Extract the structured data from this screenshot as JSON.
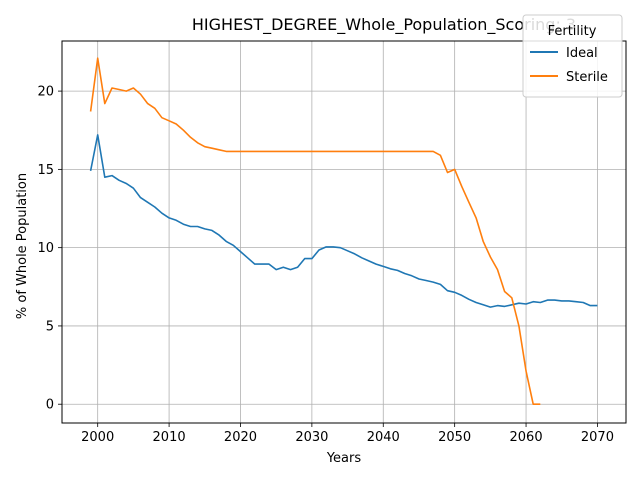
{
  "chart_data": {
    "type": "line",
    "title": "HIGHEST_DEGREE_Whole_Population_Scoring: 3",
    "xlabel": "Years",
    "ylabel": "% of Whole Population",
    "xlim": [
      1995,
      2074
    ],
    "ylim": [
      -1.2,
      23.2
    ],
    "xticks": [
      2000,
      2010,
      2020,
      2030,
      2040,
      2050,
      2060,
      2070
    ],
    "yticks": [
      0,
      5,
      10,
      15,
      20
    ],
    "grid": true,
    "legend": {
      "title": "Fertility",
      "placement": "top-right"
    },
    "series": [
      {
        "name": "Ideal",
        "color": "#1f77b4",
        "x": [
          1999,
          2000,
          2001,
          2002,
          2003,
          2004,
          2005,
          2006,
          2007,
          2008,
          2009,
          2010,
          2011,
          2012,
          2013,
          2014,
          2015,
          2016,
          2017,
          2018,
          2019,
          2020,
          2021,
          2022,
          2023,
          2024,
          2025,
          2026,
          2027,
          2028,
          2029,
          2030,
          2031,
          2032,
          2033,
          2034,
          2035,
          2036,
          2037,
          2038,
          2039,
          2040,
          2041,
          2042,
          2043,
          2044,
          2045,
          2046,
          2047,
          2048,
          2049,
          2050,
          2051,
          2052,
          2053,
          2054,
          2055,
          2056,
          2057,
          2058,
          2059,
          2060,
          2061,
          2062,
          2063,
          2064,
          2065,
          2066,
          2067,
          2068,
          2069,
          2070
        ],
        "values": [
          14.9,
          17.2,
          14.5,
          14.6,
          14.3,
          14.1,
          13.8,
          13.2,
          12.9,
          12.6,
          12.2,
          11.9,
          11.75,
          11.5,
          11.35,
          11.35,
          11.2,
          11.1,
          10.8,
          10.4,
          10.15,
          9.75,
          9.35,
          8.95,
          8.95,
          8.95,
          8.6,
          8.75,
          8.6,
          8.75,
          9.3,
          9.3,
          9.85,
          10.05,
          10.05,
          10.0,
          9.8,
          9.6,
          9.35,
          9.15,
          8.95,
          8.8,
          8.65,
          8.55,
          8.35,
          8.2,
          8.0,
          7.9,
          7.8,
          7.65,
          7.25,
          7.15,
          6.95,
          6.7,
          6.5,
          6.35,
          6.2,
          6.3,
          6.25,
          6.35,
          6.45,
          6.4,
          6.55,
          6.5,
          6.65,
          6.65,
          6.6,
          6.6,
          6.55,
          6.5,
          6.3,
          6.3
        ]
      },
      {
        "name": "Sterile",
        "color": "#ff7f0e",
        "x": [
          1999,
          2000,
          2001,
          2002,
          2003,
          2004,
          2005,
          2006,
          2007,
          2008,
          2009,
          2010,
          2011,
          2012,
          2013,
          2014,
          2015,
          2016,
          2017,
          2018,
          2020,
          2025,
          2030,
          2035,
          2040,
          2045,
          2047,
          2048,
          2049,
          2050,
          2051,
          2052,
          2053,
          2054,
          2055,
          2056,
          2057,
          2058,
          2059,
          2060,
          2061,
          2062
        ],
        "values": [
          18.7,
          22.1,
          19.2,
          20.2,
          20.1,
          20.0,
          20.2,
          19.8,
          19.2,
          18.9,
          18.3,
          18.1,
          17.9,
          17.5,
          17.05,
          16.7,
          16.45,
          16.35,
          16.25,
          16.15,
          16.15,
          16.15,
          16.15,
          16.15,
          16.15,
          16.15,
          16.15,
          15.9,
          14.8,
          15.0,
          13.9,
          12.9,
          11.9,
          10.4,
          9.4,
          8.6,
          7.2,
          6.8,
          5.0,
          2.1,
          0.0,
          0.0
        ]
      }
    ]
  }
}
